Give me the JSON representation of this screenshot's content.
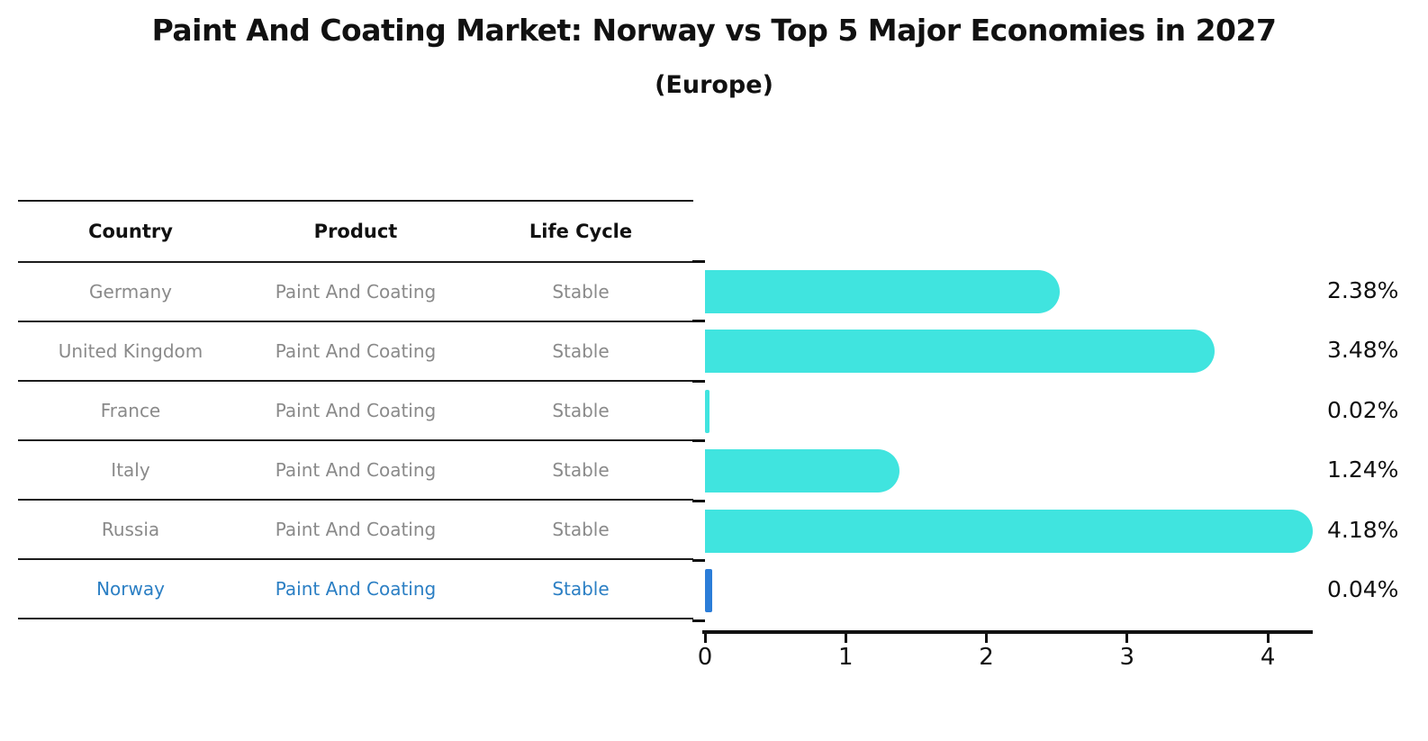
{
  "title": "Paint And Coating Market: Norway vs Top 5 Major Economies in 2027",
  "subtitle": "(Europe)",
  "table": {
    "columns": [
      "Country",
      "Product",
      "Life Cycle"
    ],
    "rows": [
      {
        "country": "Germany",
        "product": "Paint And Coating",
        "life_cycle": "Stable",
        "highlight": false
      },
      {
        "country": "United Kingdom",
        "product": "Paint And Coating",
        "life_cycle": "Stable",
        "highlight": false
      },
      {
        "country": "France",
        "product": "Paint And Coating",
        "life_cycle": "Stable",
        "highlight": false
      },
      {
        "country": "Italy",
        "product": "Paint And Coating",
        "life_cycle": "Stable",
        "highlight": false
      },
      {
        "country": "Russia",
        "product": "Paint And Coating",
        "life_cycle": "Stable",
        "highlight": false
      },
      {
        "country": "Norway",
        "product": "Paint And Coating",
        "life_cycle": "Stable",
        "highlight": true
      }
    ]
  },
  "chart_data": {
    "type": "bar",
    "orientation": "horizontal",
    "title": "Paint And Coating Market: Norway vs Top 5 Major Economies in 2027",
    "subtitle": "(Europe)",
    "categories": [
      "Germany",
      "United Kingdom",
      "France",
      "Italy",
      "Russia",
      "Norway"
    ],
    "values": [
      2.38,
      3.48,
      0.02,
      1.24,
      4.18,
      0.04
    ],
    "value_labels": [
      "2.38%",
      "3.48%",
      "0.02%",
      "1.24%",
      "4.18%",
      "0.04%"
    ],
    "xlabel": "",
    "ylabel": "",
    "xlim": [
      0,
      4.3
    ],
    "xticks": [
      0,
      1,
      2,
      3,
      4
    ],
    "xtick_labels": [
      "0",
      "1",
      "2",
      "3",
      "4"
    ],
    "grid": false,
    "legend": false,
    "bar_color": "#40E4DF",
    "highlight_color": "#2B7DD8",
    "highlight_index": 5
  },
  "colors": {
    "background": "#FFFFFF",
    "title_text": "#111111",
    "table_header_text": "#111111",
    "table_row_text": "#8A8A8A",
    "highlight_row_text": "#2B7FC4",
    "table_line": "#1C1C1C",
    "axis": "#111111",
    "value_label_text": "#111111"
  }
}
